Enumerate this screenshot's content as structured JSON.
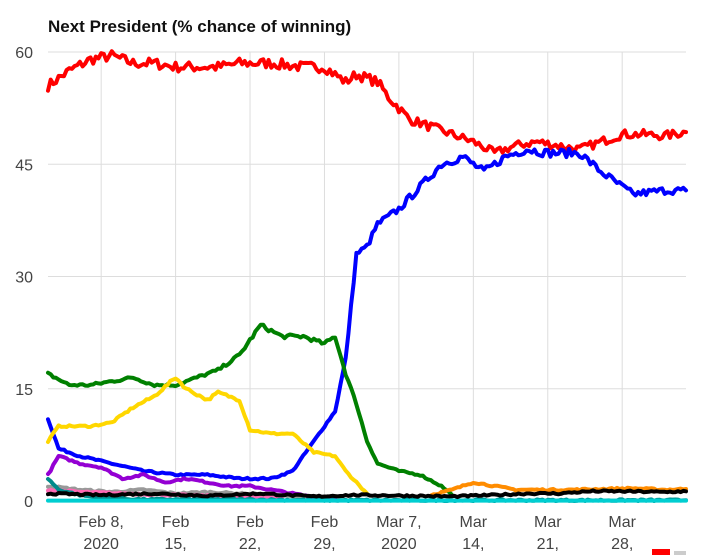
{
  "chart_data": {
    "type": "line",
    "title": "Next President (% chance of winning)",
    "xlabel": "",
    "ylabel": "",
    "ylim": [
      0,
      60
    ],
    "yticks": [
      0,
      15,
      30,
      45,
      60
    ],
    "xlim": [
      "2020-02-03",
      "2020-04-03"
    ],
    "grid": true,
    "xticks": [
      {
        "date": "2020-02-08",
        "line1": "Feb 8,",
        "line2": "2020"
      },
      {
        "date": "2020-02-15",
        "line1": "Feb",
        "line2": "15,"
      },
      {
        "date": "2020-02-22",
        "line1": "Feb",
        "line2": "22,"
      },
      {
        "date": "2020-02-29",
        "line1": "Feb",
        "line2": "29,"
      },
      {
        "date": "2020-03-07",
        "line1": "Mar 7,",
        "line2": "2020"
      },
      {
        "date": "2020-03-14",
        "line1": "Mar",
        "line2": "14,"
      },
      {
        "date": "2020-03-21",
        "line1": "Mar",
        "line2": "21,"
      },
      {
        "date": "2020-03-28",
        "line1": "Mar",
        "line2": "28,"
      }
    ],
    "series": [
      {
        "color": "#ff0000",
        "points": [
          [
            "2020-02-03",
            55.5
          ],
          [
            "2020-02-05",
            57.5
          ],
          [
            "2020-02-07",
            59
          ],
          [
            "2020-02-09",
            59.5
          ],
          [
            "2020-02-11",
            58.5
          ],
          [
            "2020-02-13",
            58.5
          ],
          [
            "2020-02-15",
            58
          ],
          [
            "2020-02-17",
            58
          ],
          [
            "2020-02-19",
            58
          ],
          [
            "2020-02-21",
            58.5
          ],
          [
            "2020-02-24",
            58.5
          ],
          [
            "2020-02-27",
            58
          ],
          [
            "2020-02-29",
            58
          ],
          [
            "2020-03-01",
            57
          ],
          [
            "2020-03-02",
            56
          ],
          [
            "2020-03-03",
            57
          ],
          [
            "2020-03-05",
            56
          ],
          [
            "2020-03-06",
            54
          ],
          [
            "2020-03-08",
            51
          ],
          [
            "2020-03-10",
            50
          ],
          [
            "2020-03-12",
            49
          ],
          [
            "2020-03-14",
            48
          ],
          [
            "2020-03-16",
            46.5
          ],
          [
            "2020-03-18",
            47.5
          ],
          [
            "2020-03-20",
            48
          ],
          [
            "2020-03-22",
            47.5
          ],
          [
            "2020-03-24",
            47
          ],
          [
            "2020-03-26",
            48
          ],
          [
            "2020-03-28",
            49
          ],
          [
            "2020-03-30",
            49
          ],
          [
            "2020-04-01",
            48.8
          ],
          [
            "2020-04-03",
            49.3
          ]
        ]
      },
      {
        "color": "#0000ff",
        "points": [
          [
            "2020-02-03",
            11
          ],
          [
            "2020-02-04",
            7
          ],
          [
            "2020-02-06",
            6
          ],
          [
            "2020-02-09",
            5
          ],
          [
            "2020-02-12",
            4
          ],
          [
            "2020-02-15",
            3.5
          ],
          [
            "2020-02-18",
            3.5
          ],
          [
            "2020-02-21",
            3
          ],
          [
            "2020-02-24",
            3
          ],
          [
            "2020-02-26",
            4
          ],
          [
            "2020-02-28",
            8
          ],
          [
            "2020-03-01",
            12
          ],
          [
            "2020-03-02",
            19
          ],
          [
            "2020-03-03",
            33
          ],
          [
            "2020-03-04",
            34
          ],
          [
            "2020-03-05",
            37
          ],
          [
            "2020-03-07",
            39
          ],
          [
            "2020-03-09",
            42
          ],
          [
            "2020-03-11",
            45
          ],
          [
            "2020-03-13",
            46
          ],
          [
            "2020-03-15",
            44
          ],
          [
            "2020-03-17",
            46
          ],
          [
            "2020-03-19",
            47
          ],
          [
            "2020-03-21",
            46.5
          ],
          [
            "2020-03-24",
            46.5
          ],
          [
            "2020-03-26",
            44
          ],
          [
            "2020-03-28",
            42
          ],
          [
            "2020-03-29",
            41
          ],
          [
            "2020-04-01",
            41.5
          ],
          [
            "2020-04-03",
            41.5
          ]
        ]
      },
      {
        "color": "#008000",
        "points": [
          [
            "2020-02-03",
            17
          ],
          [
            "2020-02-05",
            15.5
          ],
          [
            "2020-02-07",
            15.5
          ],
          [
            "2020-02-09",
            16
          ],
          [
            "2020-02-11",
            16.5
          ],
          [
            "2020-02-13",
            15.5
          ],
          [
            "2020-02-15",
            15.5
          ],
          [
            "2020-02-17",
            16.5
          ],
          [
            "2020-02-19",
            17.5
          ],
          [
            "2020-02-21",
            19.5
          ],
          [
            "2020-02-23",
            23.5
          ],
          [
            "2020-02-25",
            22
          ],
          [
            "2020-02-27",
            22
          ],
          [
            "2020-02-29",
            21
          ],
          [
            "2020-03-01",
            22
          ],
          [
            "2020-03-02",
            17
          ],
          [
            "2020-03-03",
            13
          ],
          [
            "2020-03-04",
            8
          ],
          [
            "2020-03-05",
            5
          ],
          [
            "2020-03-07",
            4
          ],
          [
            "2020-03-09",
            3.5
          ],
          [
            "2020-03-11",
            2
          ],
          [
            "2020-03-12",
            0.8
          ]
        ]
      },
      {
        "color": "#ffd700",
        "points": [
          [
            "2020-02-03",
            8
          ],
          [
            "2020-02-04",
            10
          ],
          [
            "2020-02-07",
            10
          ],
          [
            "2020-02-09",
            10.5
          ],
          [
            "2020-02-11",
            12.5
          ],
          [
            "2020-02-13",
            14
          ],
          [
            "2020-02-15",
            16.5
          ],
          [
            "2020-02-16",
            15
          ],
          [
            "2020-02-18",
            13.5
          ],
          [
            "2020-02-19",
            14.5
          ],
          [
            "2020-02-21",
            13.5
          ],
          [
            "2020-02-22",
            9.5
          ],
          [
            "2020-02-24",
            9
          ],
          [
            "2020-02-26",
            9
          ],
          [
            "2020-02-28",
            6.5
          ],
          [
            "2020-03-01",
            6
          ],
          [
            "2020-03-02",
            4
          ],
          [
            "2020-03-03",
            2.5
          ],
          [
            "2020-03-04",
            1
          ]
        ]
      },
      {
        "color": "#9400d3",
        "points": [
          [
            "2020-02-03",
            3.5
          ],
          [
            "2020-02-04",
            6
          ],
          [
            "2020-02-06",
            5
          ],
          [
            "2020-02-08",
            4.5
          ],
          [
            "2020-02-10",
            3
          ],
          [
            "2020-02-12",
            3.5
          ],
          [
            "2020-02-14",
            2.5
          ],
          [
            "2020-02-16",
            3
          ],
          [
            "2020-02-18",
            2.5
          ],
          [
            "2020-02-20",
            2
          ],
          [
            "2020-02-22",
            2
          ],
          [
            "2020-02-24",
            1.5
          ],
          [
            "2020-02-26",
            1
          ],
          [
            "2020-02-28",
            0.5
          ],
          [
            "2020-03-01",
            0.3
          ]
        ]
      },
      {
        "color": "#ff8c00",
        "points": [
          [
            "2020-03-10",
            0.8
          ],
          [
            "2020-03-12",
            1.5
          ],
          [
            "2020-03-14",
            2.5
          ],
          [
            "2020-03-16",
            2.0
          ],
          [
            "2020-03-18",
            1.5
          ],
          [
            "2020-03-20",
            1.5
          ],
          [
            "2020-03-23",
            1.5
          ],
          [
            "2020-03-26",
            1.6
          ],
          [
            "2020-03-29",
            1.7
          ],
          [
            "2020-04-01",
            1.5
          ],
          [
            "2020-04-03",
            1.6
          ]
        ]
      },
      {
        "color": "#999999",
        "points": [
          [
            "2020-02-03",
            2
          ],
          [
            "2020-02-06",
            1.5
          ],
          [
            "2020-02-09",
            1.2
          ],
          [
            "2020-02-12",
            1.5
          ],
          [
            "2020-02-15",
            1
          ],
          [
            "2020-02-18",
            1.2
          ],
          [
            "2020-02-21",
            1
          ],
          [
            "2020-02-24",
            0.8
          ],
          [
            "2020-02-27",
            0.5
          ]
        ]
      },
      {
        "color": "#ff69b4",
        "points": [
          [
            "2020-02-03",
            1.5
          ],
          [
            "2020-02-06",
            1.2
          ],
          [
            "2020-02-10",
            1
          ],
          [
            "2020-02-15",
            0.8
          ],
          [
            "2020-02-20",
            0.6
          ],
          [
            "2020-02-25",
            0.5
          ]
        ]
      },
      {
        "color": "#008b8b",
        "points": [
          [
            "2020-02-03",
            3
          ],
          [
            "2020-02-04",
            1.5
          ],
          [
            "2020-02-06",
            0.8
          ],
          [
            "2020-02-08",
            0.4
          ],
          [
            "2020-02-12",
            0.2
          ],
          [
            "2020-02-20",
            0.2
          ],
          [
            "2020-03-01",
            0.1
          ],
          [
            "2020-03-15",
            0.1
          ],
          [
            "2020-04-03",
            0.1
          ]
        ]
      },
      {
        "color": "#00ced1",
        "points": [
          [
            "2020-02-03",
            0.05
          ],
          [
            "2020-04-03",
            0.05
          ]
        ]
      },
      {
        "color": "#000000",
        "points": [
          [
            "2020-02-03",
            1
          ],
          [
            "2020-02-08",
            0.8
          ],
          [
            "2020-02-13",
            1.0
          ],
          [
            "2020-02-18",
            0.7
          ],
          [
            "2020-02-23",
            1.0
          ],
          [
            "2020-02-28",
            0.6
          ],
          [
            "2020-03-03",
            0.8
          ],
          [
            "2020-03-08",
            0.7
          ],
          [
            "2020-03-12",
            0.6
          ],
          [
            "2020-03-16",
            0.8
          ],
          [
            "2020-03-19",
            1.0
          ],
          [
            "2020-03-22",
            1.0
          ],
          [
            "2020-03-25",
            1.3
          ],
          [
            "2020-03-28",
            1.3
          ],
          [
            "2020-04-01",
            1.2
          ],
          [
            "2020-04-03",
            1.3
          ]
        ]
      }
    ]
  }
}
